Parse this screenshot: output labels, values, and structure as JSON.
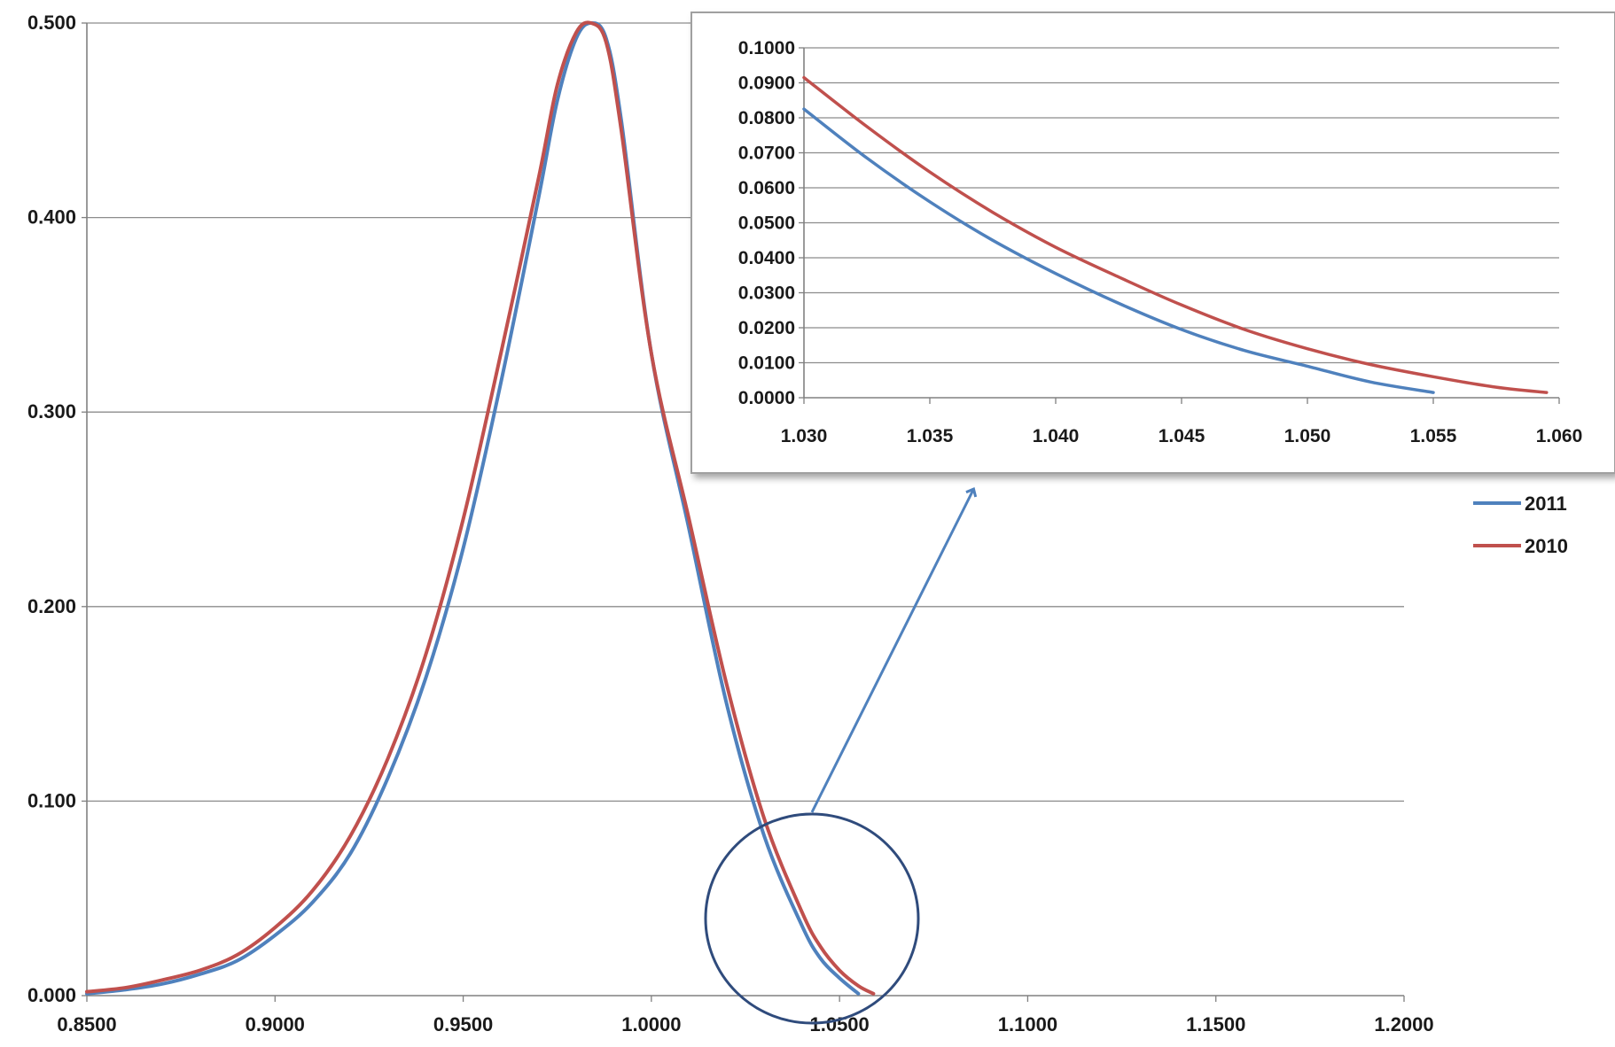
{
  "chart_data": [
    {
      "id": "main",
      "type": "line",
      "title": "",
      "xlabel": "",
      "ylabel": "",
      "xlim": [
        0.85,
        1.2
      ],
      "ylim": [
        0,
        0.5
      ],
      "x_ticks": [
        "0.8500",
        "0.9000",
        "0.9500",
        "1.0000",
        "1.0500",
        "1.1000",
        "1.1500",
        "1.2000"
      ],
      "y_ticks": [
        "0.000",
        "0.100",
        "0.200",
        "0.300",
        "0.400",
        "0.500"
      ],
      "grid": "horizontal",
      "legend": "right",
      "series": [
        {
          "name": "2011",
          "color": "#4f81bd",
          "x": [
            0.85,
            0.86,
            0.87,
            0.88,
            0.89,
            0.9,
            0.91,
            0.92,
            0.93,
            0.94,
            0.95,
            0.96,
            0.97,
            0.975,
            0.98,
            0.984,
            0.988,
            0.992,
            1.0,
            1.01,
            1.02,
            1.03,
            1.04,
            1.045,
            1.05,
            1.055
          ],
          "y": [
            0.001,
            0.003,
            0.006,
            0.011,
            0.018,
            0.031,
            0.048,
            0.073,
            0.112,
            0.163,
            0.23,
            0.315,
            0.41,
            0.46,
            0.492,
            0.5,
            0.492,
            0.45,
            0.33,
            0.24,
            0.15,
            0.082,
            0.036,
            0.019,
            0.009,
            0.001
          ]
        },
        {
          "name": "2010",
          "color": "#c0504d",
          "x": [
            0.85,
            0.86,
            0.87,
            0.88,
            0.89,
            0.9,
            0.91,
            0.92,
            0.93,
            0.94,
            0.95,
            0.96,
            0.97,
            0.975,
            0.98,
            0.984,
            0.988,
            0.992,
            1.0,
            1.01,
            1.02,
            1.03,
            1.04,
            1.045,
            1.05,
            1.055,
            1.059
          ],
          "y": [
            0.002,
            0.004,
            0.008,
            0.013,
            0.021,
            0.035,
            0.054,
            0.082,
            0.122,
            0.175,
            0.245,
            0.33,
            0.42,
            0.468,
            0.495,
            0.5,
            0.49,
            0.445,
            0.33,
            0.245,
            0.16,
            0.091,
            0.043,
            0.025,
            0.013,
            0.005,
            0.001
          ]
        }
      ]
    },
    {
      "id": "inset",
      "type": "line",
      "title": "",
      "xlim": [
        1.03,
        1.06
      ],
      "ylim": [
        0,
        0.1
      ],
      "x_ticks": [
        "1.030",
        "1.035",
        "1.040",
        "1.045",
        "1.050",
        "1.055",
        "1.060"
      ],
      "y_ticks": [
        "0.0000",
        "0.0100",
        "0.0200",
        "0.0300",
        "0.0400",
        "0.0500",
        "0.0600",
        "0.0700",
        "0.0800",
        "0.0900",
        "0.1000"
      ],
      "grid": "horizontal",
      "series": [
        {
          "name": "2011",
          "color": "#4f81bd",
          "x": [
            1.03,
            1.0325,
            1.035,
            1.0375,
            1.04,
            1.0425,
            1.045,
            1.0475,
            1.05,
            1.0525,
            1.055
          ],
          "y": [
            0.0825,
            0.0685,
            0.056,
            0.045,
            0.0355,
            0.027,
            0.0195,
            0.0135,
            0.009,
            0.0045,
            0.0015
          ]
        },
        {
          "name": "2010",
          "color": "#c0504d",
          "x": [
            1.03,
            1.0325,
            1.035,
            1.0375,
            1.04,
            1.0425,
            1.045,
            1.0475,
            1.05,
            1.0525,
            1.055,
            1.0575,
            1.0595
          ],
          "y": [
            0.0915,
            0.0775,
            0.0645,
            0.053,
            0.043,
            0.0345,
            0.0265,
            0.0195,
            0.014,
            0.0095,
            0.006,
            0.003,
            0.0015
          ]
        }
      ]
    }
  ]
}
